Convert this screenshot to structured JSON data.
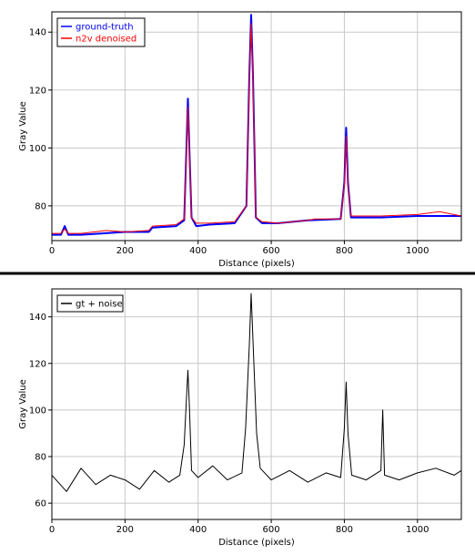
{
  "colors": {
    "grid": "#c8c8c8",
    "axis": "#000000",
    "divider": "#000000",
    "ground_truth": "#0000ff",
    "denoised": "#ff0000",
    "noisy": "#000000"
  },
  "chart_data": [
    {
      "type": "line",
      "title": "",
      "xlabel": "Distance (pixels)",
      "ylabel": "Gray Value",
      "xlim": [
        0,
        1120
      ],
      "ylim": [
        68,
        147
      ],
      "xticks": [
        0,
        200,
        400,
        600,
        800,
        1000
      ],
      "xtick_labels": [
        "0",
        "200",
        "400",
        "600",
        "800",
        "1000"
      ],
      "yticks": [
        80,
        100,
        120,
        140
      ],
      "ytick_labels": [
        "80",
        "100",
        "120",
        "140"
      ],
      "grid": true,
      "legend": "top-left",
      "series": [
        {
          "name": "ground-truth",
          "color": "#0000ff",
          "x": [
            0,
            25,
            35,
            45,
            80,
            200,
            265,
            275,
            340,
            362,
            368,
            372,
            376,
            382,
            395,
            430,
            500,
            532,
            540,
            545,
            550,
            558,
            575,
            620,
            700,
            790,
            800,
            805,
            810,
            818,
            830,
            900,
            1000,
            1120
          ],
          "y": [
            70,
            70,
            73,
            70,
            70,
            71,
            71,
            72.5,
            73,
            75,
            100,
            117,
            100,
            76,
            73,
            73.5,
            74,
            80,
            125,
            146,
            125,
            76,
            74,
            74,
            75,
            75.5,
            88,
            107,
            88,
            76,
            76,
            76,
            76.5,
            76.5
          ]
        },
        {
          "name": "n2v denoised",
          "color": "#ff0000",
          "x": [
            0,
            25,
            35,
            45,
            80,
            150,
            200,
            265,
            275,
            340,
            362,
            368,
            372,
            376,
            382,
            395,
            430,
            500,
            532,
            540,
            545,
            550,
            558,
            575,
            620,
            700,
            720,
            790,
            800,
            805,
            810,
            818,
            830,
            900,
            1000,
            1060,
            1120
          ],
          "y": [
            70.5,
            70.5,
            72,
            70.5,
            70.5,
            71.5,
            71,
            71.5,
            73,
            73.5,
            75.5,
            98,
            114,
            99,
            76,
            74,
            74,
            74.5,
            80,
            123,
            143,
            123,
            76,
            74.5,
            74,
            75,
            75.5,
            75.5,
            87,
            104,
            87,
            76.5,
            76.5,
            76.5,
            77,
            78,
            76.5
          ]
        }
      ]
    },
    {
      "type": "line",
      "title": "",
      "xlabel": "Distance (pixels)",
      "ylabel": "Gray Value",
      "xlim": [
        0,
        1120
      ],
      "ylim": [
        53,
        152
      ],
      "xticks": [
        0,
        200,
        400,
        600,
        800,
        1000
      ],
      "xtick_labels": [
        "0",
        "200",
        "400",
        "600",
        "800",
        "1000"
      ],
      "yticks": [
        60,
        80,
        100,
        120,
        140
      ],
      "ytick_labels": [
        "60",
        "80",
        "100",
        "120",
        "140"
      ],
      "grid": true,
      "legend": "top-left",
      "series": [
        {
          "name": "gt + noise",
          "color": "#000000",
          "x": [
            0,
            40,
            80,
            120,
            160,
            200,
            240,
            280,
            320,
            350,
            362,
            368,
            372,
            376,
            382,
            400,
            440,
            480,
            520,
            530,
            540,
            545,
            550,
            560,
            570,
            600,
            650,
            700,
            750,
            790,
            800,
            805,
            810,
            820,
            860,
            900,
            905,
            910,
            950,
            1000,
            1050,
            1100,
            1120
          ],
          "y": [
            72,
            65,
            75,
            68,
            72,
            70,
            66,
            74,
            69,
            72,
            85,
            105,
            117,
            102,
            74,
            71,
            76,
            70,
            73,
            92,
            128,
            150,
            130,
            90,
            75,
            70,
            74,
            69,
            73,
            71,
            92,
            112,
            90,
            72,
            70,
            74,
            100,
            72,
            70,
            73,
            75,
            72,
            74
          ]
        }
      ]
    }
  ]
}
